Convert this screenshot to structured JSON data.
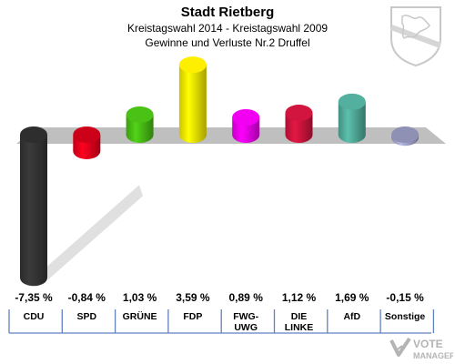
{
  "header": {
    "title": "Stadt Rietberg",
    "subtitle1": "Kreistagswahl 2014 - Kreistagswahl 2009",
    "subtitle2": "Gewinne und Verluste Nr.2 Druffel"
  },
  "logo": {
    "icon": "crest-icon",
    "text_top": "VOTE",
    "text_bottom": "MANAGER"
  },
  "chart_data": {
    "type": "bar",
    "title": "Stadt Rietberg",
    "subtitle": "Kreistagswahl 2014 - Kreistagswahl 2009 Gewinne und Verluste Nr.2 Druffel",
    "categories": [
      "CDU",
      "SPD",
      "GRÜNE",
      "FDP",
      "FWG-\nUWG",
      "DIE\nLINKE",
      "AfD",
      "Sonstige"
    ],
    "values": [
      -7.35,
      -0.84,
      1.03,
      3.59,
      0.89,
      1.12,
      1.69,
      -0.15
    ],
    "value_labels": [
      "-7,35 %",
      "-0,84 %",
      "1,03 %",
      "3,59 %",
      "0,89 %",
      "1,12 %",
      "1,69 %",
      "-0,15 %"
    ],
    "colors": [
      "#333333",
      "#e3001b",
      "#46b814",
      "#f2e400",
      "#e600e6",
      "#c8143c",
      "#4fa896",
      "#9ea0c8"
    ],
    "ylim": [
      -7.35,
      3.59
    ],
    "grid": false,
    "legend": "none"
  }
}
